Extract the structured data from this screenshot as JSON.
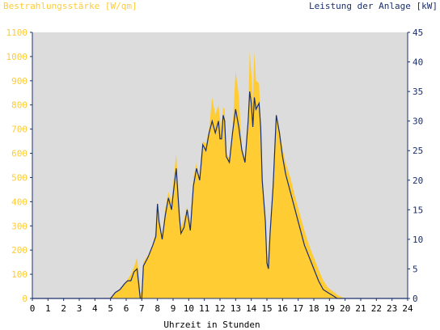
{
  "chart_data": {
    "type": "area",
    "title_left": "Bestrahlungsstärke [W/qm]",
    "title_right": "Leistung der Anlage [kW]",
    "xlabel": "Uhrzeit in Stunden",
    "xlim": [
      0,
      24
    ],
    "x_ticks": [
      0,
      1,
      2,
      3,
      4,
      5,
      6,
      7,
      8,
      9,
      10,
      11,
      12,
      13,
      14,
      15,
      16,
      17,
      18,
      19,
      20,
      21,
      22,
      23,
      24
    ],
    "y_left_lim": [
      0,
      1100
    ],
    "y_left_ticks": [
      0,
      100,
      200,
      300,
      400,
      500,
      600,
      700,
      800,
      900,
      1000,
      1100
    ],
    "y_right_lim": [
      0,
      45
    ],
    "y_right_ticks": [
      0,
      5,
      10,
      15,
      20,
      25,
      30,
      35,
      40,
      45
    ],
    "grid": false,
    "colors": {
      "plot_background": "#dcdcdc",
      "irradiance_fill": "#ffcc33",
      "power_line": "#1a2f6e",
      "left_axis_text": "#ffcc33",
      "right_axis_text": "#1a2f6e",
      "x_axis_text": "#000000"
    },
    "series": [
      {
        "axis": "left",
        "style": "area",
        "x": [
          0,
          4.8,
          5.0,
          5.3,
          5.6,
          5.9,
          6.1,
          6.3,
          6.5,
          6.7,
          6.9,
          7.0,
          7.1,
          7.4,
          7.7,
          7.9,
          8.0,
          8.1,
          8.3,
          8.5,
          8.7,
          8.9,
          9.0,
          9.2,
          9.4,
          9.5,
          9.7,
          9.9,
          10.1,
          10.3,
          10.5,
          10.7,
          10.9,
          11.1,
          11.3,
          11.5,
          11.7,
          11.9,
          12.0,
          12.1,
          12.2,
          12.3,
          12.4,
          12.6,
          12.8,
          13.0,
          13.2,
          13.4,
          13.6,
          13.8,
          13.9,
          14.0,
          14.1,
          14.2,
          14.3,
          14.5,
          14.6,
          14.7,
          14.9,
          15.0,
          15.1,
          15.2,
          15.4,
          15.6,
          15.8,
          16.0,
          16.2,
          16.5,
          16.8,
          17.1,
          17.4,
          17.7,
          18.0,
          18.3,
          18.6,
          18.9,
          19.2,
          19.5,
          19.8,
          20.1,
          20.4,
          21.0,
          24
        ],
        "values": [
          0,
          0,
          5,
          20,
          40,
          60,
          80,
          100,
          130,
          170,
          30,
          20,
          150,
          180,
          220,
          290,
          400,
          330,
          260,
          370,
          440,
          400,
          470,
          600,
          380,
          290,
          330,
          380,
          300,
          500,
          560,
          480,
          650,
          640,
          700,
          830,
          760,
          800,
          740,
          700,
          790,
          780,
          600,
          580,
          700,
          940,
          840,
          620,
          580,
          750,
          1020,
          930,
          820,
          1020,
          900,
          890,
          730,
          500,
          330,
          160,
          200,
          280,
          460,
          760,
          700,
          620,
          560,
          500,
          420,
          350,
          280,
          220,
          170,
          120,
          75,
          45,
          30,
          15,
          5,
          0,
          0,
          0,
          0
        ]
      },
      {
        "axis": "right",
        "style": "line",
        "x": [
          0,
          4.8,
          5.0,
          5.3,
          5.6,
          5.9,
          6.1,
          6.3,
          6.5,
          6.7,
          6.9,
          7.0,
          7.1,
          7.4,
          7.7,
          7.9,
          8.0,
          8.1,
          8.3,
          8.5,
          8.7,
          8.9,
          9.0,
          9.2,
          9.4,
          9.5,
          9.7,
          9.9,
          10.1,
          10.3,
          10.5,
          10.7,
          10.9,
          11.1,
          11.3,
          11.5,
          11.7,
          11.9,
          12.0,
          12.1,
          12.2,
          12.3,
          12.4,
          12.6,
          12.8,
          13.0,
          13.2,
          13.4,
          13.6,
          13.8,
          13.9,
          14.0,
          14.1,
          14.2,
          14.3,
          14.5,
          14.6,
          14.7,
          14.9,
          15.0,
          15.1,
          15.2,
          15.4,
          15.6,
          15.8,
          16.0,
          16.2,
          16.5,
          16.8,
          17.1,
          17.4,
          17.7,
          18.0,
          18.3,
          18.6,
          18.9,
          19.2,
          19.5,
          19.8,
          20.1,
          20.4,
          21.0,
          24
        ],
        "values": [
          0,
          0,
          0,
          1,
          1.5,
          2.5,
          3,
          3,
          4.5,
          5,
          0,
          0,
          5.5,
          7,
          9,
          10.5,
          16,
          13,
          10,
          14,
          17,
          15,
          17.5,
          22,
          14,
          11,
          12,
          15,
          11.5,
          19,
          22,
          20,
          26,
          25,
          28,
          30,
          28,
          30,
          27,
          27,
          31,
          30,
          24,
          23,
          28,
          32,
          29,
          25,
          23,
          30,
          35,
          33,
          29,
          34,
          32,
          33,
          29,
          20,
          13,
          6,
          5,
          11,
          19,
          31,
          28,
          24,
          21,
          18,
          15,
          12,
          9,
          7,
          5,
          3,
          1.5,
          1,
          0.5,
          0,
          0,
          0,
          0,
          0,
          0
        ]
      }
    ]
  }
}
